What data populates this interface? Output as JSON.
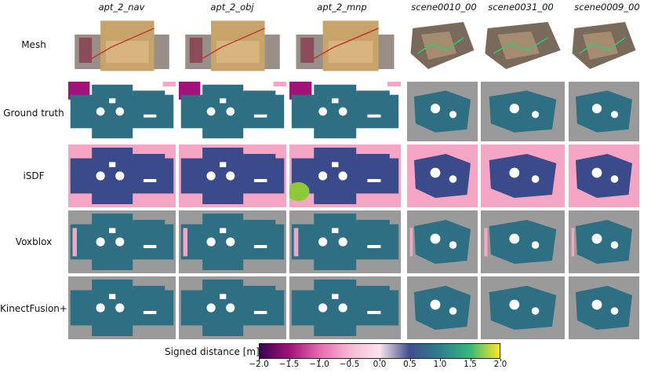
{
  "columns": [
    "apt_2_nav",
    "apt_2_obj",
    "apt_2_mnp",
    "scene0010_00",
    "scene0031_00",
    "scene0009_00"
  ],
  "rows": [
    "Mesh",
    "Ground truth",
    "iSDF",
    "Voxblox",
    "KinectFusion+"
  ],
  "colorbar": {
    "label": "Signed distance [m]",
    "ticks": [
      "−2.0",
      "−1.5",
      "−1.0",
      "−0.5",
      "0.0",
      "0.5",
      "1.0",
      "1.5",
      "2.0"
    ],
    "range": [
      -2.0,
      2.0
    ],
    "colormap_colors": [
      "#3b0254",
      "#a3127a",
      "#e76bb0",
      "#f6b8d2",
      "#fbe3ec",
      "#3e4f8c",
      "#2f7f8e",
      "#35b779",
      "#fde725"
    ]
  },
  "colors": {
    "background_free": "#f4a6c4",
    "unknown_gray": "#9a9a9a",
    "sdf_teal": "#2f6f84",
    "sdf_blue": "#3b4a8a",
    "obstacle_white": "#ffffff"
  }
}
